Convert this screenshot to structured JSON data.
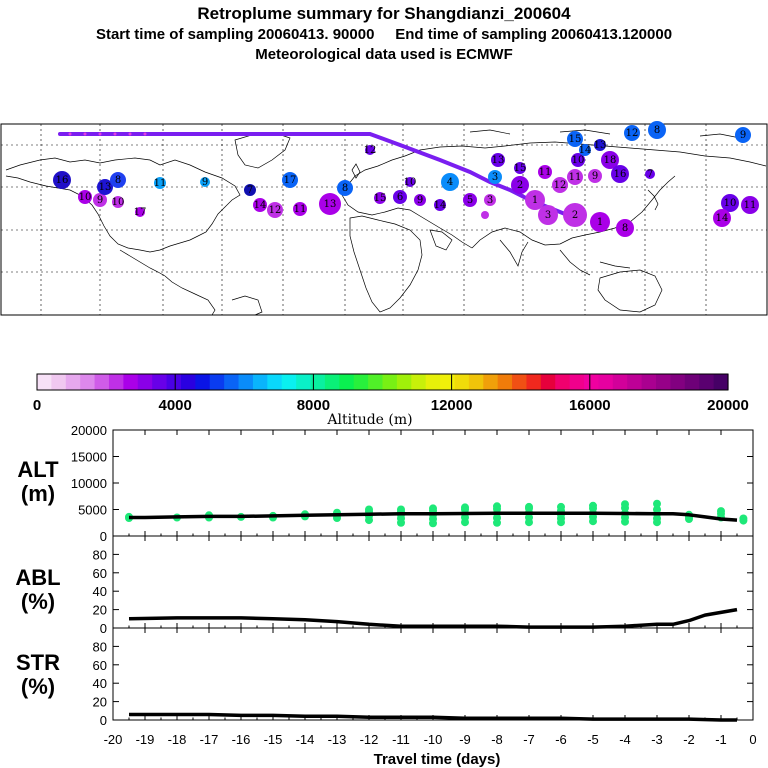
{
  "title": {
    "line1": "Retroplume summary for Shangdianzi_200604",
    "line2": "Start time of sampling 20060413. 90000     End time of sampling 20060413.120000",
    "line3": "Meteorological data used is ECMWF"
  },
  "colorbar": {
    "label": "Altitude  (m)",
    "ticks": [
      "0",
      "4000",
      "8000",
      "12000",
      "16000",
      "20000"
    ],
    "colors": [
      "#f7e1f7",
      "#f0c8f0",
      "#e6a8ee",
      "#dd88ec",
      "#cf5ce8",
      "#bf30e6",
      "#aa00e8",
      "#8a00e8",
      "#6800e8",
      "#4a00e6",
      "#2a00e0",
      "#0a14e6",
      "#0a3cf0",
      "#0a64f6",
      "#0a8cfa",
      "#0ab4fc",
      "#0ad8fc",
      "#0af0f0",
      "#0af0c8",
      "#0af0a0",
      "#0af078",
      "#0af050",
      "#28f03c",
      "#50f028",
      "#78f014",
      "#a0f00a",
      "#c8f00a",
      "#e6f00a",
      "#f0f00a",
      "#f0dc0a",
      "#f0c40a",
      "#f0a00a",
      "#f07c0a",
      "#f05014",
      "#f0281e",
      "#e6003c",
      "#f0006e",
      "#f0008c",
      "#f000a0",
      "#e600a0",
      "#d2009a",
      "#be0096",
      "#aa0090",
      "#960088",
      "#820080",
      "#6e0078",
      "#5a0070",
      "#460066"
    ]
  },
  "chart_data": [
    {
      "type": "scatter",
      "panel": "map",
      "description_series": "retroplume centroid track and cluster positions",
      "labels": [
        "16",
        "10",
        "9",
        "10",
        "13",
        "8",
        "11",
        "9",
        "7",
        "17",
        "8",
        "14",
        "12",
        "11",
        "13",
        "15",
        "6",
        "10",
        "9",
        "14",
        "5",
        "4",
        "3",
        "3",
        "2",
        "1",
        "13",
        "15",
        "11",
        "12",
        "11",
        "10",
        "9",
        "18",
        "16",
        "15",
        "14",
        "13",
        "12",
        "8",
        "9",
        "7",
        "10",
        "11",
        "14",
        "3",
        "2",
        "1",
        "8",
        "12",
        "17",
        "20"
      ]
    },
    {
      "type": "line",
      "panel": "ALT",
      "ylabel": "ALT\n(m)",
      "ylabel_line1": "ALT",
      "ylabel_line2": "(m)",
      "ylim": [
        0,
        20000
      ],
      "yticks": [
        "20000",
        "15000",
        "10000",
        "5000",
        "0"
      ],
      "x": [
        -19.5,
        -19,
        -18,
        -17,
        -16,
        -15,
        -14,
        -13,
        -12,
        -11,
        -10,
        -9,
        -8,
        -7,
        -6,
        -5,
        -4,
        -3,
        -2.5,
        -2,
        -1.5,
        -1,
        -0.5
      ],
      "values": [
        3500,
        3500,
        3600,
        3700,
        3700,
        3800,
        3900,
        4000,
        4100,
        4200,
        4200,
        4250,
        4300,
        4300,
        4300,
        4300,
        4250,
        4200,
        4200,
        4000,
        3600,
        3200,
        3000
      ],
      "spread_points": [
        {
          "x": -19.5,
          "ys": [
            3400,
            3600
          ]
        },
        {
          "x": -18,
          "ys": [
            3500
          ]
        },
        {
          "x": -17,
          "ys": [
            3500,
            3900
          ]
        },
        {
          "x": -16,
          "ys": [
            3600
          ]
        },
        {
          "x": -15,
          "ys": [
            3500,
            3800
          ]
        },
        {
          "x": -14,
          "ys": [
            3700,
            4100
          ]
        },
        {
          "x": -13,
          "ys": [
            3400,
            3900,
            4400
          ]
        },
        {
          "x": -12,
          "ys": [
            3000,
            3800,
            4600,
            5000
          ]
        },
        {
          "x": -11,
          "ys": [
            2500,
            3300,
            4000,
            4600,
            5000
          ]
        },
        {
          "x": -10,
          "ys": [
            2400,
            3200,
            4000,
            4800,
            5200
          ]
        },
        {
          "x": -9,
          "ys": [
            2600,
            3500,
            4300,
            5000,
            5400
          ]
        },
        {
          "x": -8,
          "ys": [
            2500,
            3400,
            4300,
            5100,
            5600
          ]
        },
        {
          "x": -7,
          "ys": [
            2600,
            3500,
            4400,
            5200,
            5500
          ]
        },
        {
          "x": -6,
          "ys": [
            2600,
            3300,
            4000,
            4800,
            5500
          ]
        },
        {
          "x": -5,
          "ys": [
            2800,
            3600,
            4300,
            5200,
            5700
          ]
        },
        {
          "x": -4,
          "ys": [
            2700,
            3500,
            4300,
            5300,
            6000
          ]
        },
        {
          "x": -3,
          "ys": [
            2600,
            3300,
            4200,
            5000,
            6100
          ]
        },
        {
          "x": -2,
          "ys": [
            3200,
            3600,
            4000
          ]
        },
        {
          "x": -1,
          "ys": [
            3500,
            4200,
            4700
          ]
        },
        {
          "x": -0.3,
          "ys": [
            2900,
            3300
          ]
        }
      ]
    },
    {
      "type": "line",
      "panel": "ABL",
      "ylabel_line1": "ABL",
      "ylabel_line2": "(%)",
      "ylim": [
        0,
        100
      ],
      "yticks": [
        "80",
        "60",
        "40",
        "20",
        "0"
      ],
      "x": [
        -19.5,
        -18,
        -17,
        -16,
        -15,
        -14,
        -13,
        -12,
        -11,
        -10,
        -9,
        -8,
        -7,
        -6,
        -5,
        -4,
        -3,
        -2.5,
        -2,
        -1.5,
        -1,
        -0.5
      ],
      "values": [
        10,
        11,
        11,
        11,
        10,
        9,
        7,
        4,
        2,
        2,
        2,
        2,
        1,
        1,
        1,
        2,
        4,
        4,
        8,
        14,
        17,
        20
      ]
    },
    {
      "type": "line",
      "panel": "STR",
      "ylabel_line1": "STR",
      "ylabel_line2": "(%)",
      "ylim": [
        0,
        100
      ],
      "yticks": [
        "80",
        "60",
        "40",
        "20",
        "0"
      ],
      "x": [
        -19.5,
        -18,
        -17,
        -16,
        -15,
        -14,
        -13,
        -12,
        -11,
        -10,
        -9,
        -8,
        -7,
        -6,
        -5,
        -4,
        -3,
        -2,
        -1,
        -0.5
      ],
      "values": [
        6,
        6,
        6,
        5,
        5,
        4,
        4,
        3,
        3,
        3,
        2,
        2,
        2,
        2,
        1,
        1,
        1,
        1,
        0,
        0
      ],
      "xlabel": "Travel time (days)",
      "xticks": [
        "-20",
        "-19",
        "-18",
        "-17",
        "-16",
        "-15",
        "-14",
        "-13",
        "-12",
        "-11",
        "-10",
        "-9",
        "-8",
        "-7",
        "-6",
        "-5",
        "-4",
        "-3",
        "-2",
        "-1",
        "0"
      ],
      "xlim": [
        -20,
        0
      ]
    }
  ]
}
